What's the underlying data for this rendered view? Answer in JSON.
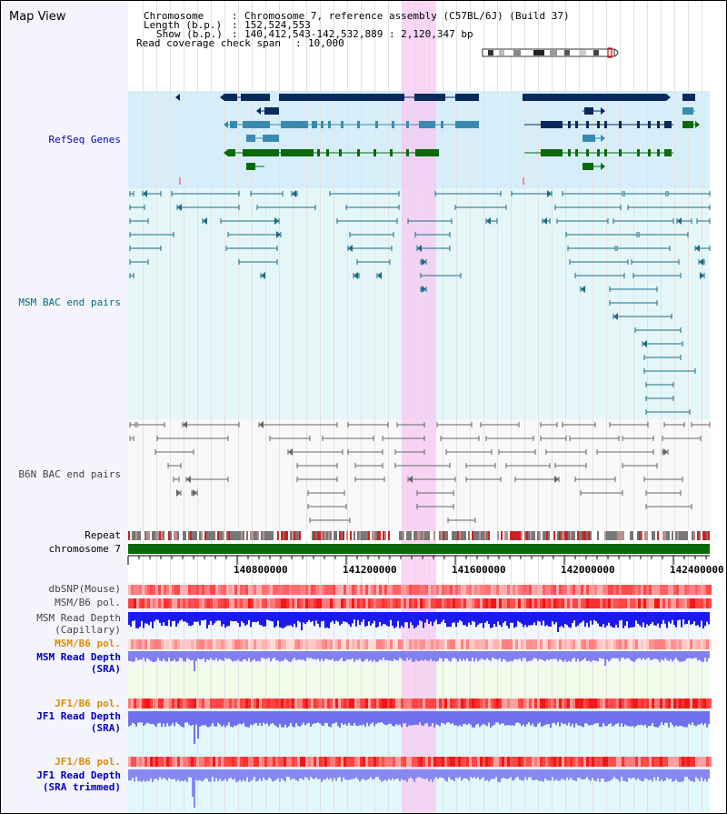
{
  "title": "Map View",
  "header": {
    "chromosome_label": "Chromosome",
    "chromosome_value": "Chromosome 7, reference assembly (C57BL/6J) (Build 37)",
    "length_label": "Length (b.p.)",
    "length_value": "152,524,553",
    "show_label": "Show (b.p.)",
    "show_value": "140,412,543-142,532,889 : 2,120,347 bp",
    "coverage_label": "Read coverage check span",
    "coverage_value": "10,000"
  },
  "tracks": {
    "refseq": "RefSeq Genes",
    "msm_bac": "MSM BAC end pairs",
    "b6n_bac": "B6N BAC end pairs",
    "repeat": "Repeat",
    "chromosome": "chromosome 7",
    "dbsnp": "dbSNP(Mouse)",
    "msm_b6_pol_1": "MSM/B6 pol.",
    "msm_depth_cap_1": "MSM Read Depth",
    "msm_depth_cap_2": "(Capillary)",
    "msm_b6_pol_2": "MSM/B6 pol.",
    "msm_depth_sra_1": "MSM Read Depth",
    "msm_depth_sra_2": "(SRA)",
    "jf1_pol_1": "JF1/B6 pol.",
    "jf1_depth_sra_1": "JF1 Read Depth",
    "jf1_depth_sra_2": "(SRA)",
    "jf1_pol_2": "JF1/B6 pol.",
    "jf1_depth_trim_1": "JF1 Read Depth",
    "jf1_depth_trim_2": "(SRA trimmed)"
  },
  "axis": {
    "ticks": [
      "140800000",
      "141200000",
      "141600000",
      "142000000",
      "142400000"
    ]
  },
  "colors": {
    "label_blue": "#0000c0",
    "label_teal": "#006a80",
    "label_gray": "#444444",
    "label_orange": "#e08a00",
    "refseq_bg": "#d8eef8",
    "bac_bg": "#e6f6f8",
    "gene_dark": "#0a2a5e",
    "gene_mid": "#3a8ab0",
    "gene_green": "#0a6a0a",
    "highlight": "#f7c8f0"
  }
}
